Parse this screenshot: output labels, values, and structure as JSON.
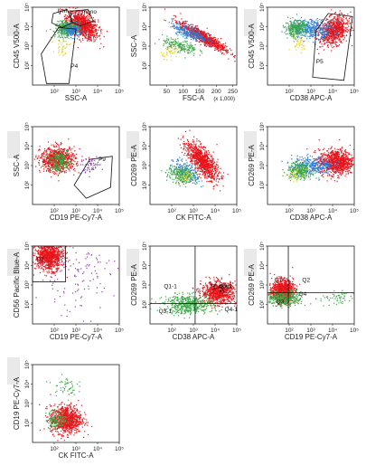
{
  "colors": {
    "red": "#e8141b",
    "green": "#3aa845",
    "blue": "#2f7fd6",
    "yellow": "#e6d23a",
    "purple": "#8b3fb8",
    "black": "#111111",
    "gate": "#111111",
    "frame": "#222222"
  },
  "chart_data": [
    {
      "type": "scatter",
      "xlabel": "SSC-A",
      "ylabel": "CD45 V500-A",
      "xscale": "log",
      "yscale": "log",
      "xlim": [
        10,
        100000
      ],
      "ylim": [
        10,
        100000
      ],
      "x_ticks": [
        "10²",
        "10³",
        "10⁴",
        "10⁵"
      ],
      "y_ticks": [
        "10²",
        "10³",
        "10⁴",
        "10⁵"
      ],
      "gates": [
        {
          "label": "lym",
          "shape": "polygon"
        },
        {
          "label": "mono",
          "shape": "polygon"
        },
        {
          "label": "P4",
          "shape": "polygon"
        }
      ],
      "populations": [
        {
          "color": "red",
          "x": 2000,
          "y": 12000,
          "points": 900
        },
        {
          "color": "green",
          "x": 350,
          "y": 8000,
          "points": 320
        },
        {
          "color": "blue",
          "x": 700,
          "y": 6000,
          "points": 160
        },
        {
          "color": "yellow",
          "x": 250,
          "y": 900,
          "points": 40
        }
      ]
    },
    {
      "type": "scatter",
      "xlabel": "FSC-A",
      "x_unit": "(x 1,000)",
      "ylabel": "SSC-A",
      "xscale": "linear",
      "yscale": "log",
      "xlim": [
        0,
        262
      ],
      "ylim": [
        10,
        100000
      ],
      "x_ticks": [
        "50",
        "100",
        "150",
        "200",
        "250"
      ],
      "y_ticks": [
        "10²",
        "10³",
        "10⁴",
        "10⁵"
      ],
      "gates": [],
      "populations": [
        {
          "color": "red",
          "x": 160,
          "y": 3000,
          "points": 900
        },
        {
          "color": "blue",
          "x": 120,
          "y": 5000,
          "points": 260
        },
        {
          "color": "green",
          "x": 90,
          "y": 1000,
          "points": 180
        },
        {
          "color": "yellow",
          "x": 60,
          "y": 500,
          "points": 40
        }
      ]
    },
    {
      "type": "scatter",
      "xlabel": "CD38 APC-A",
      "ylabel": "CD45 V500-A",
      "xscale": "log",
      "yscale": "log",
      "xlim": [
        10,
        100000
      ],
      "ylim": [
        10,
        100000
      ],
      "x_ticks": [
        "10²",
        "10³",
        "10⁴",
        "10⁵"
      ],
      "y_ticks": [
        "10²",
        "10³",
        "10⁴",
        "10⁵"
      ],
      "gates": [
        {
          "label": "P5",
          "shape": "polygon"
        }
      ],
      "populations": [
        {
          "color": "red",
          "x": 12000,
          "y": 6000,
          "points": 800
        },
        {
          "color": "blue",
          "x": 1000,
          "y": 8000,
          "points": 420
        },
        {
          "color": "green",
          "x": 200,
          "y": 8000,
          "points": 260
        },
        {
          "color": "yellow",
          "x": 300,
          "y": 1500,
          "points": 40
        }
      ]
    },
    {
      "type": "scatter",
      "xlabel": "CD19 PE-Cy7-A",
      "ylabel": "SSC-A",
      "xscale": "log",
      "yscale": "log",
      "xlim": [
        10,
        100000
      ],
      "ylim": [
        10,
        100000
      ],
      "x_ticks": [
        "10²",
        "10³",
        "10⁴",
        "10⁵"
      ],
      "y_ticks": [
        "10²",
        "10³",
        "10⁴",
        "10⁵"
      ],
      "gates": [
        {
          "label": "P9",
          "shape": "polygon"
        }
      ],
      "populations": [
        {
          "color": "red",
          "x": 150,
          "y": 2000,
          "points": 800
        },
        {
          "color": "green",
          "x": 180,
          "y": 1500,
          "points": 200
        },
        {
          "color": "purple",
          "x": 4000,
          "y": 1000,
          "points": 60
        }
      ]
    },
    {
      "type": "scatter",
      "xlabel": "CK FITC-A",
      "ylabel": "CD269 PE-A",
      "xscale": "log",
      "yscale": "log",
      "xlim": [
        10,
        100000
      ],
      "ylim": [
        10,
        100000
      ],
      "x_ticks": [
        "10²",
        "10³",
        "10⁴",
        "10⁵"
      ],
      "y_ticks": [
        "10²",
        "10³",
        "10⁴",
        "10⁵"
      ],
      "gates": [],
      "populations": [
        {
          "color": "red",
          "x": 2500,
          "y": 1800,
          "points": 900
        },
        {
          "color": "blue",
          "x": 500,
          "y": 500,
          "points": 200
        },
        {
          "color": "green",
          "x": 300,
          "y": 300,
          "points": 260
        },
        {
          "color": "yellow",
          "x": 400,
          "y": 250,
          "points": 40
        }
      ]
    },
    {
      "type": "scatter",
      "xlabel": "CD38 APC-A",
      "ylabel": "CD269 PE-A",
      "xscale": "log",
      "yscale": "log",
      "xlim": [
        10,
        100000
      ],
      "ylim": [
        10,
        100000
      ],
      "x_ticks": [
        "10²",
        "10³",
        "10⁴",
        "10⁵"
      ],
      "y_ticks": [
        "10²",
        "10³",
        "10⁴",
        "10⁵"
      ],
      "gates": [],
      "populations": [
        {
          "color": "red",
          "x": 15000,
          "y": 1500,
          "points": 900
        },
        {
          "color": "blue",
          "x": 1200,
          "y": 1000,
          "points": 350
        },
        {
          "color": "green",
          "x": 300,
          "y": 500,
          "points": 260
        },
        {
          "color": "yellow",
          "x": 250,
          "y": 300,
          "points": 40
        }
      ]
    },
    {
      "type": "scatter",
      "xlabel": "CD19 PE-Cy7-A",
      "ylabel": "CD56 Pacific Blue-A",
      "xscale": "log",
      "yscale": "log",
      "xlim": [
        10,
        100000
      ],
      "ylim": [
        10,
        100000
      ],
      "x_ticks": [
        "10²",
        "10³",
        "10⁴",
        "10⁵"
      ],
      "y_ticks": [
        "10²",
        "10³",
        "10⁴",
        "10⁵"
      ],
      "gates": [
        {
          "label": "P7",
          "shape": "rectangle"
        }
      ],
      "populations": [
        {
          "color": "red",
          "x": 60,
          "y": 30000,
          "points": 900
        },
        {
          "color": "purple",
          "x": 1000,
          "y": 3000,
          "points": 120
        }
      ]
    },
    {
      "type": "scatter",
      "xlabel": "CD38 APC-A",
      "ylabel": "CD269 PE-A",
      "xscale": "log",
      "yscale": "log",
      "xlim": [
        10,
        100000
      ],
      "ylim": [
        10,
        100000
      ],
      "x_ticks": [
        "10²",
        "10³",
        "10⁴",
        "10⁵"
      ],
      "y_ticks": [
        "10²",
        "10³",
        "10⁴",
        "10⁵"
      ],
      "gates": [
        {
          "label": "Q1-1",
          "shape": "quadrant"
        },
        {
          "label": "Q2-1",
          "shape": "quadrant"
        },
        {
          "label": "Q3-1",
          "shape": "quadrant"
        },
        {
          "label": "Q4-1",
          "shape": "quadrant"
        }
      ],
      "populations": [
        {
          "color": "red",
          "x": 15000,
          "y": 400,
          "points": 800
        },
        {
          "color": "green",
          "x": 600,
          "y": 100,
          "points": 500
        },
        {
          "color": "black",
          "x": 15000,
          "y": 800,
          "points": 30
        }
      ]
    },
    {
      "type": "scatter",
      "xlabel": "CD19 PE-Cy7-A",
      "ylabel": "CD269 PE-A",
      "xscale": "log",
      "yscale": "log",
      "xlim": [
        10,
        100000
      ],
      "ylim": [
        10,
        100000
      ],
      "x_ticks": [
        "10²",
        "10³",
        "10⁴",
        "10⁵"
      ],
      "y_ticks": [
        "10²",
        "10³",
        "10⁴",
        "10⁵"
      ],
      "gates": [
        {
          "label": "Q1",
          "shape": "quadrant"
        },
        {
          "label": "Q2",
          "shape": "quadrant"
        },
        {
          "label": "Q3",
          "shape": "quadrant"
        },
        {
          "label": "Q4",
          "shape": "quadrant"
        }
      ],
      "populations": [
        {
          "color": "red",
          "x": 50,
          "y": 500,
          "points": 900
        },
        {
          "color": "green",
          "x": 60,
          "y": 200,
          "points": 350
        },
        {
          "color": "green",
          "x": 15000,
          "y": 200,
          "points": 60
        }
      ]
    },
    {
      "type": "scatter",
      "xlabel": "CK FITC-A",
      "ylabel": "CD19 PE-Cy7-A",
      "xscale": "log",
      "yscale": "log",
      "xlim": [
        10,
        100000
      ],
      "ylim": [
        10,
        100000
      ],
      "x_ticks": [
        "10²",
        "10³",
        "10⁴",
        "10⁵"
      ],
      "y_ticks": [
        "10²",
        "10³",
        "10⁴",
        "10⁵"
      ],
      "gates": [],
      "populations": [
        {
          "color": "red",
          "x": 350,
          "y": 150,
          "points": 900
        },
        {
          "color": "green",
          "x": 150,
          "y": 150,
          "points": 120
        },
        {
          "color": "green",
          "x": 300,
          "y": 8000,
          "points": 50
        }
      ]
    }
  ]
}
